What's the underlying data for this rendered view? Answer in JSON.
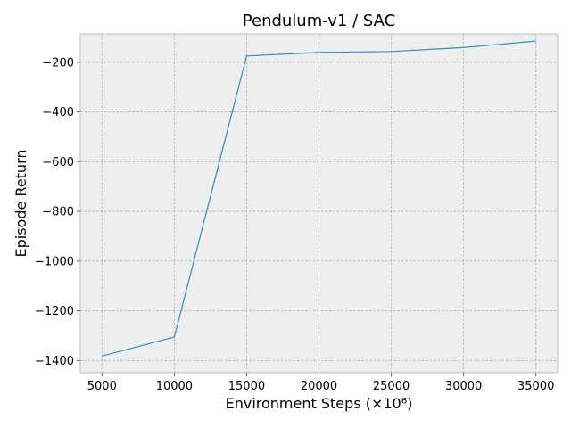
{
  "chart_data": {
    "type": "line",
    "title": "Pendulum-v1 / SAC",
    "xlabel": "Environment Steps (×10⁶)",
    "ylabel": "Episode Return",
    "x": [
      5000,
      10000,
      15000,
      20000,
      25000,
      30000,
      35000
    ],
    "series": [
      {
        "values": [
          -1382,
          -1305,
          -175,
          -161,
          -157,
          -141,
          -115
        ]
      }
    ],
    "xticks": [
      5000,
      10000,
      15000,
      20000,
      25000,
      30000,
      35000
    ],
    "xtick_labels": [
      "5000",
      "10000",
      "15000",
      "20000",
      "25000",
      "30000",
      "35000"
    ],
    "yticks": [
      -1400,
      -1200,
      -1000,
      -800,
      -600,
      -400,
      -200
    ],
    "ytick_labels": [
      "−1400",
      "−1200",
      "−1000",
      "−800",
      "−600",
      "−400",
      "−200"
    ],
    "xlim": [
      3500,
      36500
    ],
    "ylim": [
      -1449,
      -86
    ],
    "grid": true,
    "colors": {
      "line": "#348abd",
      "background": "#eeeeee",
      "frame": "#bcbcbc"
    }
  }
}
